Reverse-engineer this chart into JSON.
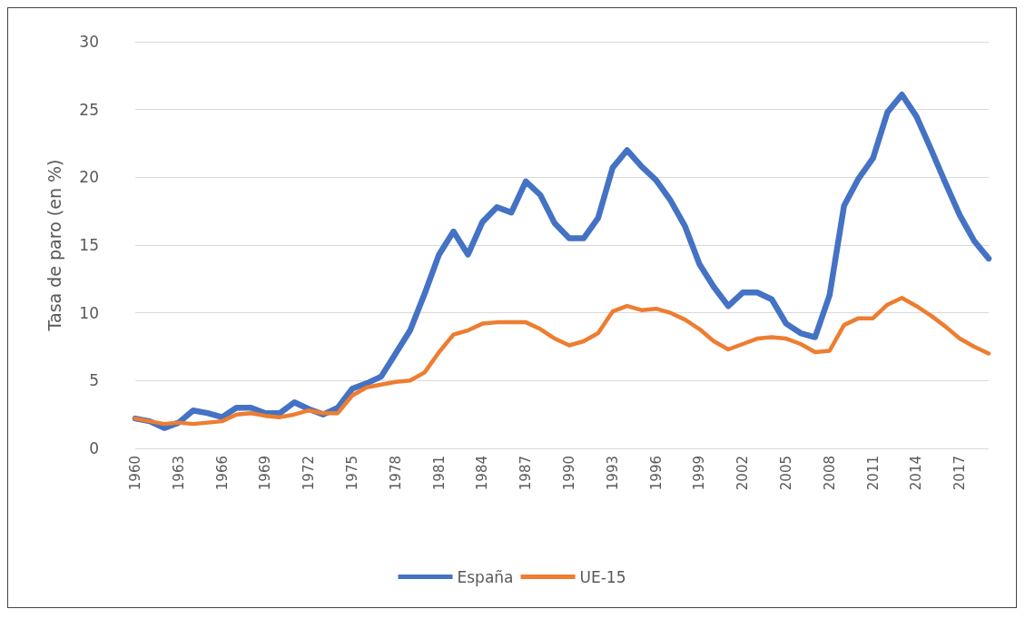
{
  "chart_data": {
    "type": "line",
    "ylabel": "Tasa de paro (en %)",
    "categories": [
      "1960",
      null,
      null,
      "1963",
      null,
      null,
      "1966",
      null,
      null,
      "1969",
      null,
      null,
      "1972",
      null,
      null,
      "1975",
      null,
      null,
      "1978",
      null,
      null,
      "1981",
      null,
      null,
      "1984",
      null,
      null,
      "1987",
      null,
      null,
      "1990",
      null,
      null,
      "1993",
      null,
      null,
      "1996",
      null,
      null,
      "1999",
      null,
      null,
      "2002",
      null,
      null,
      "2005",
      null,
      null,
      "2008",
      null,
      null,
      "2011",
      null,
      null,
      "2014",
      null,
      null,
      "2017",
      null,
      null
    ],
    "series": [
      {
        "name": "España",
        "color": "#4472c4",
        "values": [
          2.2,
          2.0,
          1.5,
          1.9,
          2.8,
          2.6,
          2.3,
          3.0,
          3.0,
          2.6,
          2.6,
          3.4,
          2.9,
          2.5,
          3.0,
          4.4,
          4.8,
          5.3,
          7.0,
          8.7,
          11.4,
          14.3,
          16.0,
          14.3,
          16.7,
          17.8,
          17.4,
          19.7,
          18.7,
          16.6,
          15.5,
          15.5,
          17.0,
          20.7,
          22.0,
          20.8,
          19.8,
          18.3,
          16.4,
          13.6,
          11.9,
          10.5,
          11.5,
          11.5,
          11.0,
          9.2,
          8.5,
          8.2,
          11.3,
          17.9,
          19.9,
          21.4,
          24.8,
          26.1,
          24.5,
          22.1,
          19.6,
          17.2,
          15.3,
          14.0
        ]
      },
      {
        "name": "UE-15",
        "color": "#ed7d31",
        "values": [
          2.2,
          2.0,
          1.8,
          1.9,
          1.8,
          1.9,
          2.0,
          2.5,
          2.6,
          2.4,
          2.3,
          2.5,
          2.8,
          2.6,
          2.6,
          3.9,
          4.5,
          4.7,
          4.9,
          5.0,
          5.6,
          7.1,
          8.4,
          8.7,
          9.2,
          9.3,
          9.3,
          9.3,
          8.8,
          8.1,
          7.6,
          7.9,
          8.5,
          10.1,
          10.5,
          10.2,
          10.3,
          10.0,
          9.5,
          8.8,
          7.9,
          7.3,
          7.7,
          8.1,
          8.2,
          8.1,
          7.7,
          7.1,
          7.2,
          9.1,
          9.6,
          9.6,
          10.6,
          11.1,
          10.5,
          9.8,
          9.0,
          8.1,
          7.5,
          7.0
        ]
      }
    ],
    "ylim": [
      0,
      30
    ],
    "yticks": [
      0,
      5,
      10,
      15,
      20,
      25,
      30
    ],
    "grid": "y",
    "legend": "bottom",
    "marker": "none",
    "line_style": "solid"
  }
}
